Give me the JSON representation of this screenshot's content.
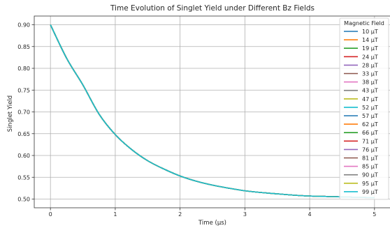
{
  "chart_data": {
    "type": "line",
    "title": "Time Evolution of Singlet Yield under Different Bz Fields",
    "xlabel": "Time (μs)",
    "ylabel": "Singlet Yield",
    "xlim": [
      -0.25,
      5.25
    ],
    "ylim": [
      0.48,
      0.92
    ],
    "xticks": [
      0,
      1,
      2,
      3,
      4,
      5
    ],
    "xtick_labels": [
      "0",
      "1",
      "2",
      "3",
      "4",
      "5"
    ],
    "yticks": [
      0.5,
      0.55,
      0.6,
      0.65,
      0.7,
      0.75,
      0.8,
      0.85,
      0.9
    ],
    "ytick_labels": [
      "0.50",
      "0.55",
      "0.60",
      "0.65",
      "0.70",
      "0.75",
      "0.80",
      "0.85",
      "0.90"
    ],
    "grid": true,
    "legend": {
      "title": "Magnetic Field",
      "placement": "right"
    },
    "x": [
      0,
      0.25,
      0.5,
      0.75,
      1.0,
      1.25,
      1.5,
      1.75,
      2.0,
      2.25,
      2.5,
      2.75,
      3.0,
      3.25,
      3.5,
      3.75,
      4.0,
      4.25,
      4.5,
      4.75,
      5.0
    ],
    "series_values": [
      0.9,
      0.823,
      0.762,
      0.695,
      0.648,
      0.614,
      0.588,
      0.569,
      0.553,
      0.541,
      0.532,
      0.525,
      0.519,
      0.515,
      0.512,
      0.509,
      0.507,
      0.506,
      0.505,
      0.504,
      0.503
    ],
    "series": [
      {
        "name": "10 μT",
        "color": "#1f77b4"
      },
      {
        "name": "14 μT",
        "color": "#ff7f0e"
      },
      {
        "name": "19 μT",
        "color": "#2ca02c"
      },
      {
        "name": "24 μT",
        "color": "#d62728"
      },
      {
        "name": "28 μT",
        "color": "#9467bd"
      },
      {
        "name": "33 μT",
        "color": "#8c564b"
      },
      {
        "name": "38 μT",
        "color": "#e377c2"
      },
      {
        "name": "43 μT",
        "color": "#7f7f7f"
      },
      {
        "name": "47 μT",
        "color": "#bcbd22"
      },
      {
        "name": "52 μT",
        "color": "#17becf"
      },
      {
        "name": "57 μT",
        "color": "#1f77b4"
      },
      {
        "name": "62 μT",
        "color": "#ff7f0e"
      },
      {
        "name": "66 μT",
        "color": "#2ca02c"
      },
      {
        "name": "71 μT",
        "color": "#d62728"
      },
      {
        "name": "76 μT",
        "color": "#9467bd"
      },
      {
        "name": "81 μT",
        "color": "#8c564b"
      },
      {
        "name": "85 μT",
        "color": "#e377c2"
      },
      {
        "name": "90 μT",
        "color": "#7f7f7f"
      },
      {
        "name": "95 μT",
        "color": "#bcbd22"
      },
      {
        "name": "99 μT",
        "color": "#17becf"
      }
    ]
  }
}
